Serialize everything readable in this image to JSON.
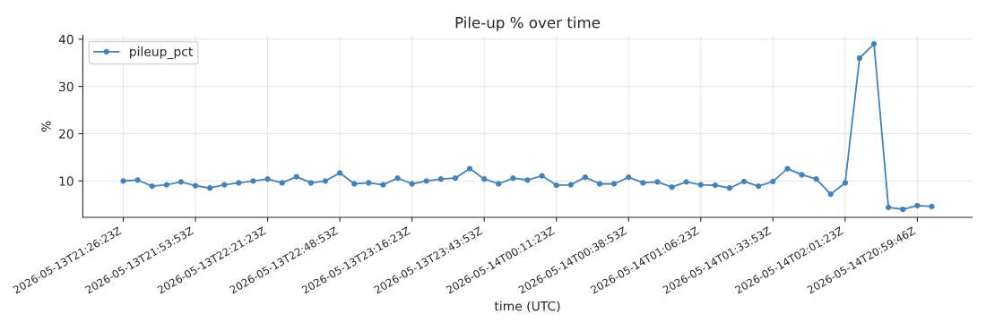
{
  "chart_data": {
    "type": "line",
    "title": "Pile-up % over time",
    "xlabel": "time (UTC)",
    "ylabel": "%",
    "categories": [
      "2026-05-13T21:26:23Z",
      null,
      null,
      null,
      null,
      "2026-05-13T21:53:53Z",
      null,
      null,
      null,
      null,
      "2026-05-13T22:21:23Z",
      null,
      null,
      null,
      null,
      "2026-05-13T22:48:53Z",
      null,
      null,
      null,
      null,
      "2026-05-13T23:16:23Z",
      null,
      null,
      null,
      null,
      "2026-05-13T23:43:53Z",
      null,
      null,
      null,
      null,
      "2026-05-14T00:11:23Z",
      null,
      null,
      null,
      null,
      "2026-05-14T00:38:53Z",
      null,
      null,
      null,
      null,
      "2026-05-14T01:06:23Z",
      null,
      null,
      null,
      null,
      "2026-05-14T01:33:53Z",
      null,
      null,
      null,
      null,
      "2026-05-14T02:01:23Z",
      null,
      null,
      null,
      null,
      "2026-05-14T20:59:46Z",
      null
    ],
    "series": [
      {
        "name": "pileup_pct",
        "color": "#4682b4",
        "values": [
          10.0,
          10.2,
          8.9,
          9.2,
          9.8,
          9.0,
          8.5,
          9.2,
          9.6,
          10.0,
          10.4,
          9.6,
          10.9,
          9.6,
          10.0,
          11.7,
          9.4,
          9.6,
          9.2,
          10.6,
          9.4,
          10.0,
          10.4,
          10.6,
          12.6,
          10.4,
          9.4,
          10.6,
          10.2,
          11.1,
          9.1,
          9.2,
          10.8,
          9.4,
          9.4,
          10.8,
          9.6,
          9.8,
          8.7,
          9.8,
          9.2,
          9.1,
          8.5,
          9.9,
          8.9,
          9.9,
          12.6,
          11.3,
          10.4,
          7.2,
          9.6,
          36.0,
          39.0,
          4.4,
          4.0,
          4.8,
          4.6
        ]
      }
    ],
    "ylim": [
      2.3,
      40.8
    ],
    "yticks": [
      10,
      20,
      30,
      40
    ],
    "grid": true,
    "legend": "top left",
    "marker": "circle",
    "line_style": "solid"
  }
}
